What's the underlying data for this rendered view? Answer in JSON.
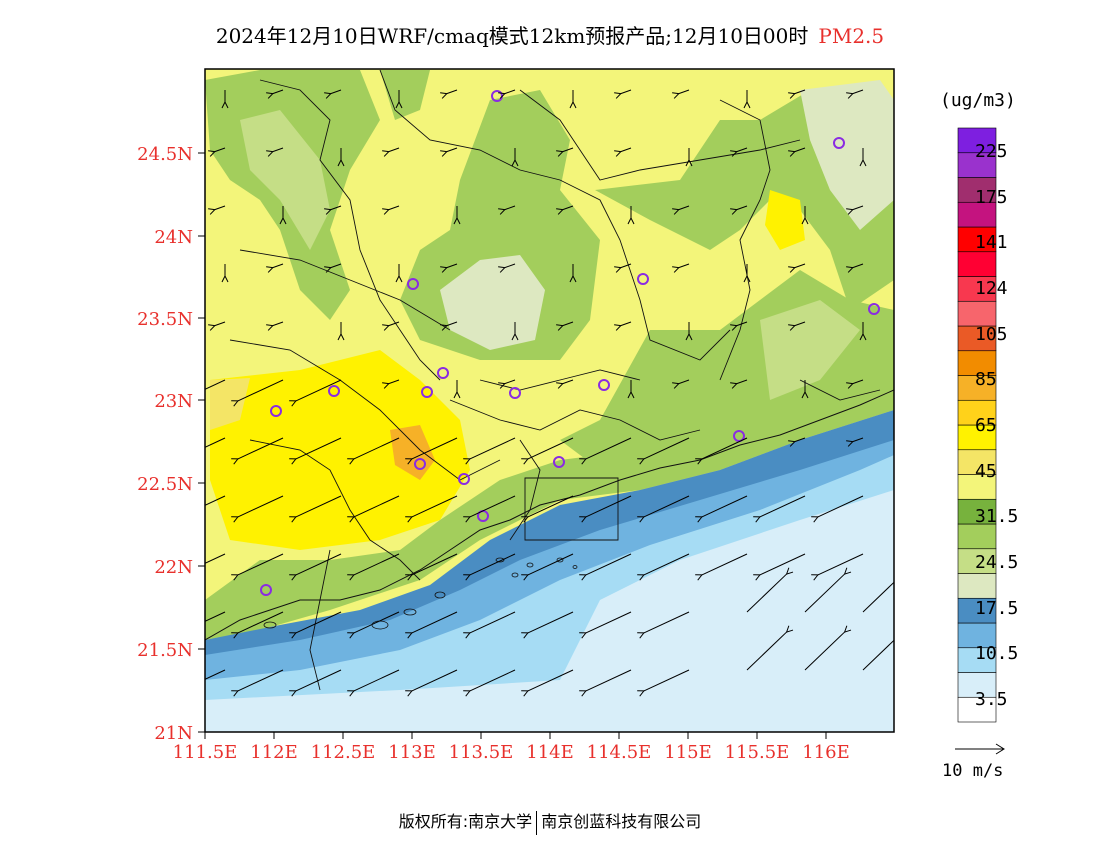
{
  "title": {
    "main": "2024年12月10日WRF/cmaq模式12km预报产品;12月10日00时",
    "pollutant": "PM2.5"
  },
  "axes": {
    "lat_labels": [
      "24.5N",
      "24N",
      "23.5N",
      "23N",
      "22.5N",
      "22N",
      "21.5N",
      "21N"
    ],
    "lon_labels": [
      "111.5E",
      "112E",
      "112.5E",
      "113E",
      "113.5E",
      "114E",
      "114.5E",
      "115E",
      "115.5E",
      "116E"
    ],
    "tick_color": "#e8302c"
  },
  "colorbar": {
    "unit": "(ug/m3)",
    "labels": [
      "225",
      "175",
      "141",
      "124",
      "105",
      "85",
      "65",
      "45",
      "31.5",
      "24.5",
      "17.5",
      "10.5",
      "3.5"
    ],
    "colors": [
      "#ffffff",
      "#d8eef9",
      "#a6dcf4",
      "#6fb3e0",
      "#4a8dc2",
      "#dde8c1",
      "#c5de86",
      "#a3ce5c",
      "#77b23d",
      "#f3f57a",
      "#f4e566",
      "#fff200",
      "#ffd21a",
      "#f6b127",
      "#f28c00",
      "#ea5a26",
      "#f7656c",
      "#f8384f",
      "#ff0033",
      "#ff0000",
      "#c4137f",
      "#a02e6e",
      "#9a32cd",
      "#7e1fe0"
    ]
  },
  "wind_reference": {
    "label": "10 m/s"
  },
  "footer": {
    "left": "版权所有:南京大学",
    "right": "南京创蓝科技有限公司"
  }
}
